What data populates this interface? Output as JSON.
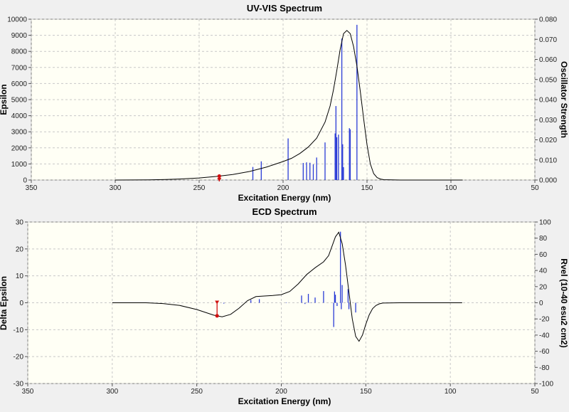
{
  "chart_data": [
    {
      "type": "line",
      "title": "UV-VIS Spectrum",
      "xlabel": "Excitation Energy (nm)",
      "ylabel": "Epsilon",
      "y2label": "Oscillator Strength",
      "xlim": [
        350,
        50
      ],
      "ylim": [
        0,
        10000
      ],
      "y2lim": [
        0,
        0.08
      ],
      "x_ticks": [
        350,
        300,
        250,
        200,
        150,
        100,
        50
      ],
      "y_ticks": [
        0,
        1000,
        2000,
        3000,
        4000,
        5000,
        6000,
        7000,
        8000,
        9000,
        10000
      ],
      "y2_ticks": [
        "0.000",
        "0.010",
        "0.020",
        "0.030",
        "0.040",
        "0.050",
        "0.060",
        "0.070",
        "0.080"
      ],
      "grid": true,
      "curve": {
        "x": [
          300,
          280,
          270,
          260,
          250,
          240,
          230,
          220,
          210,
          200,
          195,
          190,
          185,
          180,
          175,
          172,
          170,
          168,
          166,
          164,
          162,
          160,
          158,
          156,
          154,
          152,
          150,
          148,
          146,
          144,
          142,
          140,
          130,
          120,
          110,
          100,
          93
        ],
        "y": [
          0,
          10,
          30,
          70,
          130,
          220,
          340,
          530,
          800,
          1150,
          1350,
          1650,
          2050,
          2600,
          3600,
          4600,
          5600,
          6800,
          8100,
          9100,
          9300,
          9100,
          8300,
          7100,
          5500,
          3800,
          2200,
          1000,
          400,
          150,
          60,
          20,
          0,
          0,
          0,
          0,
          0
        ]
      },
      "sticks": {
        "x": [
          238,
          234,
          218,
          213,
          197,
          188,
          186,
          184,
          182,
          180,
          175,
          169,
          168.5,
          168,
          167,
          165,
          164.5,
          164,
          160.5,
          160,
          156
        ],
        "f": [
          0.0016,
          0.0002,
          0.0065,
          0.0093,
          0.0207,
          0.0085,
          0.0088,
          0.0086,
          0.0078,
          0.0112,
          0.0187,
          0.0232,
          0.0368,
          0.0213,
          0.0226,
          0.0704,
          0.0178,
          0.0064,
          0.0258,
          0.0252,
          0.0772
        ]
      },
      "marker_x": 238
    },
    {
      "type": "line",
      "title": "ECD Spectrum",
      "xlabel": "Excitation Energy (nm)",
      "ylabel": "Delta Epsilon",
      "y2label": "Rvel (10-40 esu2 cm2)",
      "xlim": [
        350,
        50
      ],
      "ylim": [
        -30,
        30
      ],
      "y2lim": [
        -100,
        100
      ],
      "x_ticks": [
        350,
        300,
        250,
        200,
        150,
        100,
        50
      ],
      "y_ticks": [
        -30,
        -20,
        -10,
        0,
        10,
        20,
        30
      ],
      "y2_ticks": [
        -100,
        -80,
        -60,
        -40,
        -20,
        0,
        20,
        40,
        60,
        80,
        100
      ],
      "grid": true,
      "curve": {
        "x": [
          300,
          280,
          270,
          260,
          250,
          240,
          235,
          230,
          225,
          220,
          215,
          210,
          205,
          200,
          195,
          190,
          185,
          180,
          175,
          172,
          170,
          168,
          166,
          164,
          162,
          160,
          158,
          156,
          154,
          152,
          150,
          148,
          146,
          144,
          142,
          140,
          130,
          120,
          110,
          100,
          93
        ],
        "y": [
          0,
          0,
          -0.3,
          -1,
          -2.5,
          -4.6,
          -5.2,
          -4.3,
          -2,
          0.8,
          2.3,
          2.5,
          2.7,
          3,
          4.2,
          7,
          10.5,
          13,
          15.2,
          17.5,
          21,
          24.5,
          26.2,
          22,
          14,
          4,
          -6,
          -12.5,
          -14.3,
          -12,
          -8,
          -4.5,
          -2.2,
          -1,
          -0.4,
          -0.1,
          0,
          0,
          0,
          0,
          0
        ]
      },
      "sticks": {
        "x": [
          234,
          218,
          213,
          197,
          188,
          186,
          184,
          182,
          180,
          175,
          169,
          168.5,
          168,
          167,
          165,
          164.5,
          164,
          160.5,
          160,
          156
        ],
        "r": [
          -1,
          3.5,
          4.5,
          0.5,
          9,
          -1.5,
          11,
          0.5,
          6.5,
          14.5,
          -30,
          14,
          10,
          -4,
          88,
          -8,
          22,
          17,
          -8,
          -12
        ]
      },
      "marker_x": 238
    }
  ]
}
